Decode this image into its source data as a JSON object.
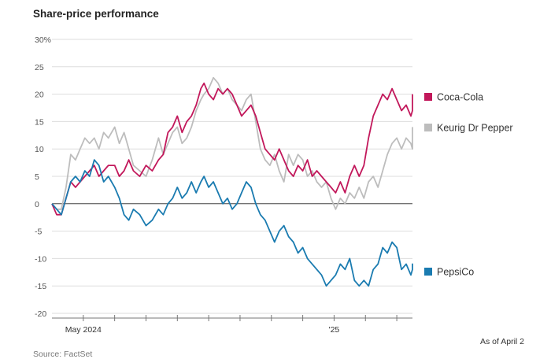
{
  "title": "Share-price performance",
  "note": "As of April 2",
  "source": "Source: FactSet",
  "colors": {
    "coca_cola": "#c2185b",
    "keurig": "#bdbdbd",
    "pepsico": "#1a7bb0",
    "axis": "#444444",
    "grid": "#dddddd"
  },
  "chart_data": {
    "type": "line",
    "title": "Share-price performance",
    "xlabel": "",
    "ylabel": "",
    "ylim": [
      -20,
      30
    ],
    "yticks": [
      30,
      25,
      20,
      15,
      10,
      5,
      0,
      -5,
      -10,
      -15,
      -20
    ],
    "ytick_labels": [
      "30%",
      "25",
      "20",
      "15",
      "10",
      "5",
      "0",
      "-5",
      "-10",
      "-15",
      "-20"
    ],
    "xlim": [
      0,
      11.5
    ],
    "xticks": [
      {
        "x": 1,
        "label": "May 2024"
      },
      {
        "x": 2,
        "label": ""
      },
      {
        "x": 3,
        "label": ""
      },
      {
        "x": 4,
        "label": ""
      },
      {
        "x": 5,
        "label": ""
      },
      {
        "x": 6,
        "label": ""
      },
      {
        "x": 7,
        "label": ""
      },
      {
        "x": 8,
        "label": ""
      },
      {
        "x": 9,
        "label": "'25"
      },
      {
        "x": 10,
        "label": ""
      },
      {
        "x": 11,
        "label": ""
      }
    ],
    "series": [
      {
        "name": "Coca-Cola",
        "color": "#c2185b",
        "points": [
          [
            0,
            0
          ],
          [
            0.15,
            -2
          ],
          [
            0.3,
            -2
          ],
          [
            0.45,
            1
          ],
          [
            0.6,
            4
          ],
          [
            0.75,
            3
          ],
          [
            0.9,
            4
          ],
          [
            1.05,
            5
          ],
          [
            1.2,
            6
          ],
          [
            1.35,
            7
          ],
          [
            1.5,
            5
          ],
          [
            1.65,
            6
          ],
          [
            1.8,
            7
          ],
          [
            2.0,
            7
          ],
          [
            2.15,
            5
          ],
          [
            2.3,
            6
          ],
          [
            2.45,
            8
          ],
          [
            2.6,
            6
          ],
          [
            2.8,
            5
          ],
          [
            3.0,
            7
          ],
          [
            3.2,
            6
          ],
          [
            3.4,
            8
          ],
          [
            3.55,
            9
          ],
          [
            3.7,
            13
          ],
          [
            3.85,
            14
          ],
          [
            4.0,
            16
          ],
          [
            4.15,
            13
          ],
          [
            4.3,
            15
          ],
          [
            4.45,
            16
          ],
          [
            4.6,
            18
          ],
          [
            4.75,
            21
          ],
          [
            4.85,
            22
          ],
          [
            5.0,
            20
          ],
          [
            5.15,
            19
          ],
          [
            5.3,
            21
          ],
          [
            5.45,
            20
          ],
          [
            5.6,
            21
          ],
          [
            5.75,
            20
          ],
          [
            5.9,
            18
          ],
          [
            6.05,
            16
          ],
          [
            6.2,
            17
          ],
          [
            6.35,
            18
          ],
          [
            6.5,
            16
          ],
          [
            6.65,
            13
          ],
          [
            6.8,
            10
          ],
          [
            6.95,
            9
          ],
          [
            7.1,
            8
          ],
          [
            7.25,
            10
          ],
          [
            7.4,
            8
          ],
          [
            7.55,
            6
          ],
          [
            7.7,
            5
          ],
          [
            7.85,
            7
          ],
          [
            8.0,
            6
          ],
          [
            8.15,
            8
          ],
          [
            8.3,
            5
          ],
          [
            8.45,
            6
          ],
          [
            8.6,
            5
          ],
          [
            8.75,
            4
          ],
          [
            8.9,
            3
          ],
          [
            9.05,
            2
          ],
          [
            9.2,
            4
          ],
          [
            9.35,
            2
          ],
          [
            9.5,
            5
          ],
          [
            9.65,
            7
          ],
          [
            9.8,
            5
          ],
          [
            9.95,
            7
          ],
          [
            10.1,
            12
          ],
          [
            10.25,
            16
          ],
          [
            10.4,
            18
          ],
          [
            10.55,
            20
          ],
          [
            10.7,
            19
          ],
          [
            10.85,
            21
          ],
          [
            11.0,
            19
          ],
          [
            11.15,
            17
          ],
          [
            11.3,
            18
          ],
          [
            11.45,
            16
          ],
          [
            11.6,
            17
          ],
          [
            11.75,
            19
          ],
          [
            11.9,
            20
          ],
          [
            12.0,
            20
          ]
        ]
      },
      {
        "name": "Keurig Dr Pepper",
        "color": "#bdbdbd",
        "points": [
          [
            0,
            0
          ],
          [
            0.15,
            -1
          ],
          [
            0.3,
            -1
          ],
          [
            0.45,
            3
          ],
          [
            0.6,
            9
          ],
          [
            0.75,
            8
          ],
          [
            0.9,
            10
          ],
          [
            1.05,
            12
          ],
          [
            1.2,
            11
          ],
          [
            1.35,
            12
          ],
          [
            1.5,
            10
          ],
          [
            1.65,
            13
          ],
          [
            1.8,
            12
          ],
          [
            2.0,
            14
          ],
          [
            2.15,
            11
          ],
          [
            2.3,
            13
          ],
          [
            2.45,
            10
          ],
          [
            2.6,
            7
          ],
          [
            2.8,
            6
          ],
          [
            3.0,
            5
          ],
          [
            3.2,
            8
          ],
          [
            3.4,
            12
          ],
          [
            3.55,
            9
          ],
          [
            3.7,
            11
          ],
          [
            3.85,
            13
          ],
          [
            4.0,
            14
          ],
          [
            4.15,
            11
          ],
          [
            4.3,
            12
          ],
          [
            4.45,
            14
          ],
          [
            4.6,
            17
          ],
          [
            4.75,
            19
          ],
          [
            4.85,
            20
          ],
          [
            5.0,
            21
          ],
          [
            5.15,
            23
          ],
          [
            5.3,
            22
          ],
          [
            5.45,
            20
          ],
          [
            5.6,
            21
          ],
          [
            5.75,
            19
          ],
          [
            5.9,
            18
          ],
          [
            6.05,
            17
          ],
          [
            6.2,
            19
          ],
          [
            6.35,
            20
          ],
          [
            6.5,
            15
          ],
          [
            6.65,
            10
          ],
          [
            6.8,
            8
          ],
          [
            6.95,
            7
          ],
          [
            7.1,
            9
          ],
          [
            7.25,
            6
          ],
          [
            7.4,
            4
          ],
          [
            7.55,
            9
          ],
          [
            7.7,
            7
          ],
          [
            7.85,
            9
          ],
          [
            8.0,
            8
          ],
          [
            8.15,
            5
          ],
          [
            8.3,
            6
          ],
          [
            8.45,
            4
          ],
          [
            8.6,
            3
          ],
          [
            8.75,
            4
          ],
          [
            8.9,
            1
          ],
          [
            9.05,
            -1
          ],
          [
            9.2,
            1
          ],
          [
            9.35,
            0
          ],
          [
            9.5,
            2
          ],
          [
            9.65,
            1
          ],
          [
            9.8,
            3
          ],
          [
            9.95,
            1
          ],
          [
            10.1,
            4
          ],
          [
            10.25,
            5
          ],
          [
            10.4,
            3
          ],
          [
            10.55,
            6
          ],
          [
            10.7,
            9
          ],
          [
            10.85,
            11
          ],
          [
            11.0,
            12
          ],
          [
            11.15,
            10
          ],
          [
            11.3,
            12
          ],
          [
            11.45,
            11
          ],
          [
            11.6,
            10
          ],
          [
            11.75,
            11
          ],
          [
            11.9,
            12
          ],
          [
            12.0,
            14
          ]
        ]
      },
      {
        "name": "PepsiCo",
        "color": "#1a7bb0",
        "points": [
          [
            0,
            0
          ],
          [
            0.15,
            -1
          ],
          [
            0.3,
            -2
          ],
          [
            0.45,
            1
          ],
          [
            0.6,
            4
          ],
          [
            0.75,
            5
          ],
          [
            0.9,
            4
          ],
          [
            1.05,
            6
          ],
          [
            1.2,
            5
          ],
          [
            1.35,
            8
          ],
          [
            1.5,
            7
          ],
          [
            1.65,
            4
          ],
          [
            1.8,
            5
          ],
          [
            2.0,
            3
          ],
          [
            2.15,
            1
          ],
          [
            2.3,
            -2
          ],
          [
            2.45,
            -3
          ],
          [
            2.6,
            -1
          ],
          [
            2.8,
            -2
          ],
          [
            3.0,
            -4
          ],
          [
            3.2,
            -3
          ],
          [
            3.4,
            -1
          ],
          [
            3.55,
            -2
          ],
          [
            3.7,
            0
          ],
          [
            3.85,
            1
          ],
          [
            4.0,
            3
          ],
          [
            4.15,
            1
          ],
          [
            4.3,
            2
          ],
          [
            4.45,
            4
          ],
          [
            4.6,
            2
          ],
          [
            4.75,
            4
          ],
          [
            4.85,
            5
          ],
          [
            5.0,
            3
          ],
          [
            5.15,
            4
          ],
          [
            5.3,
            2
          ],
          [
            5.45,
            0
          ],
          [
            5.6,
            1
          ],
          [
            5.75,
            -1
          ],
          [
            5.9,
            0
          ],
          [
            6.05,
            2
          ],
          [
            6.2,
            4
          ],
          [
            6.35,
            3
          ],
          [
            6.5,
            0
          ],
          [
            6.65,
            -2
          ],
          [
            6.8,
            -3
          ],
          [
            6.95,
            -5
          ],
          [
            7.1,
            -7
          ],
          [
            7.25,
            -5
          ],
          [
            7.4,
            -4
          ],
          [
            7.55,
            -6
          ],
          [
            7.7,
            -7
          ],
          [
            7.85,
            -9
          ],
          [
            8.0,
            -8
          ],
          [
            8.15,
            -10
          ],
          [
            8.3,
            -11
          ],
          [
            8.45,
            -12
          ],
          [
            8.6,
            -13
          ],
          [
            8.75,
            -15
          ],
          [
            8.9,
            -14
          ],
          [
            9.05,
            -13
          ],
          [
            9.2,
            -11
          ],
          [
            9.35,
            -12
          ],
          [
            9.5,
            -10
          ],
          [
            9.65,
            -14
          ],
          [
            9.8,
            -15
          ],
          [
            9.95,
            -14
          ],
          [
            10.1,
            -15
          ],
          [
            10.25,
            -12
          ],
          [
            10.4,
            -11
          ],
          [
            10.55,
            -8
          ],
          [
            10.7,
            -9
          ],
          [
            10.85,
            -7
          ],
          [
            11.0,
            -8
          ],
          [
            11.15,
            -12
          ],
          [
            11.3,
            -11
          ],
          [
            11.45,
            -13
          ],
          [
            11.6,
            -12
          ],
          [
            11.75,
            -11
          ],
          [
            11.9,
            -12
          ],
          [
            12.0,
            -12
          ]
        ]
      }
    ],
    "legend": [
      "Coca-Cola",
      "Keurig Dr Pepper",
      "PepsiCo"
    ]
  }
}
